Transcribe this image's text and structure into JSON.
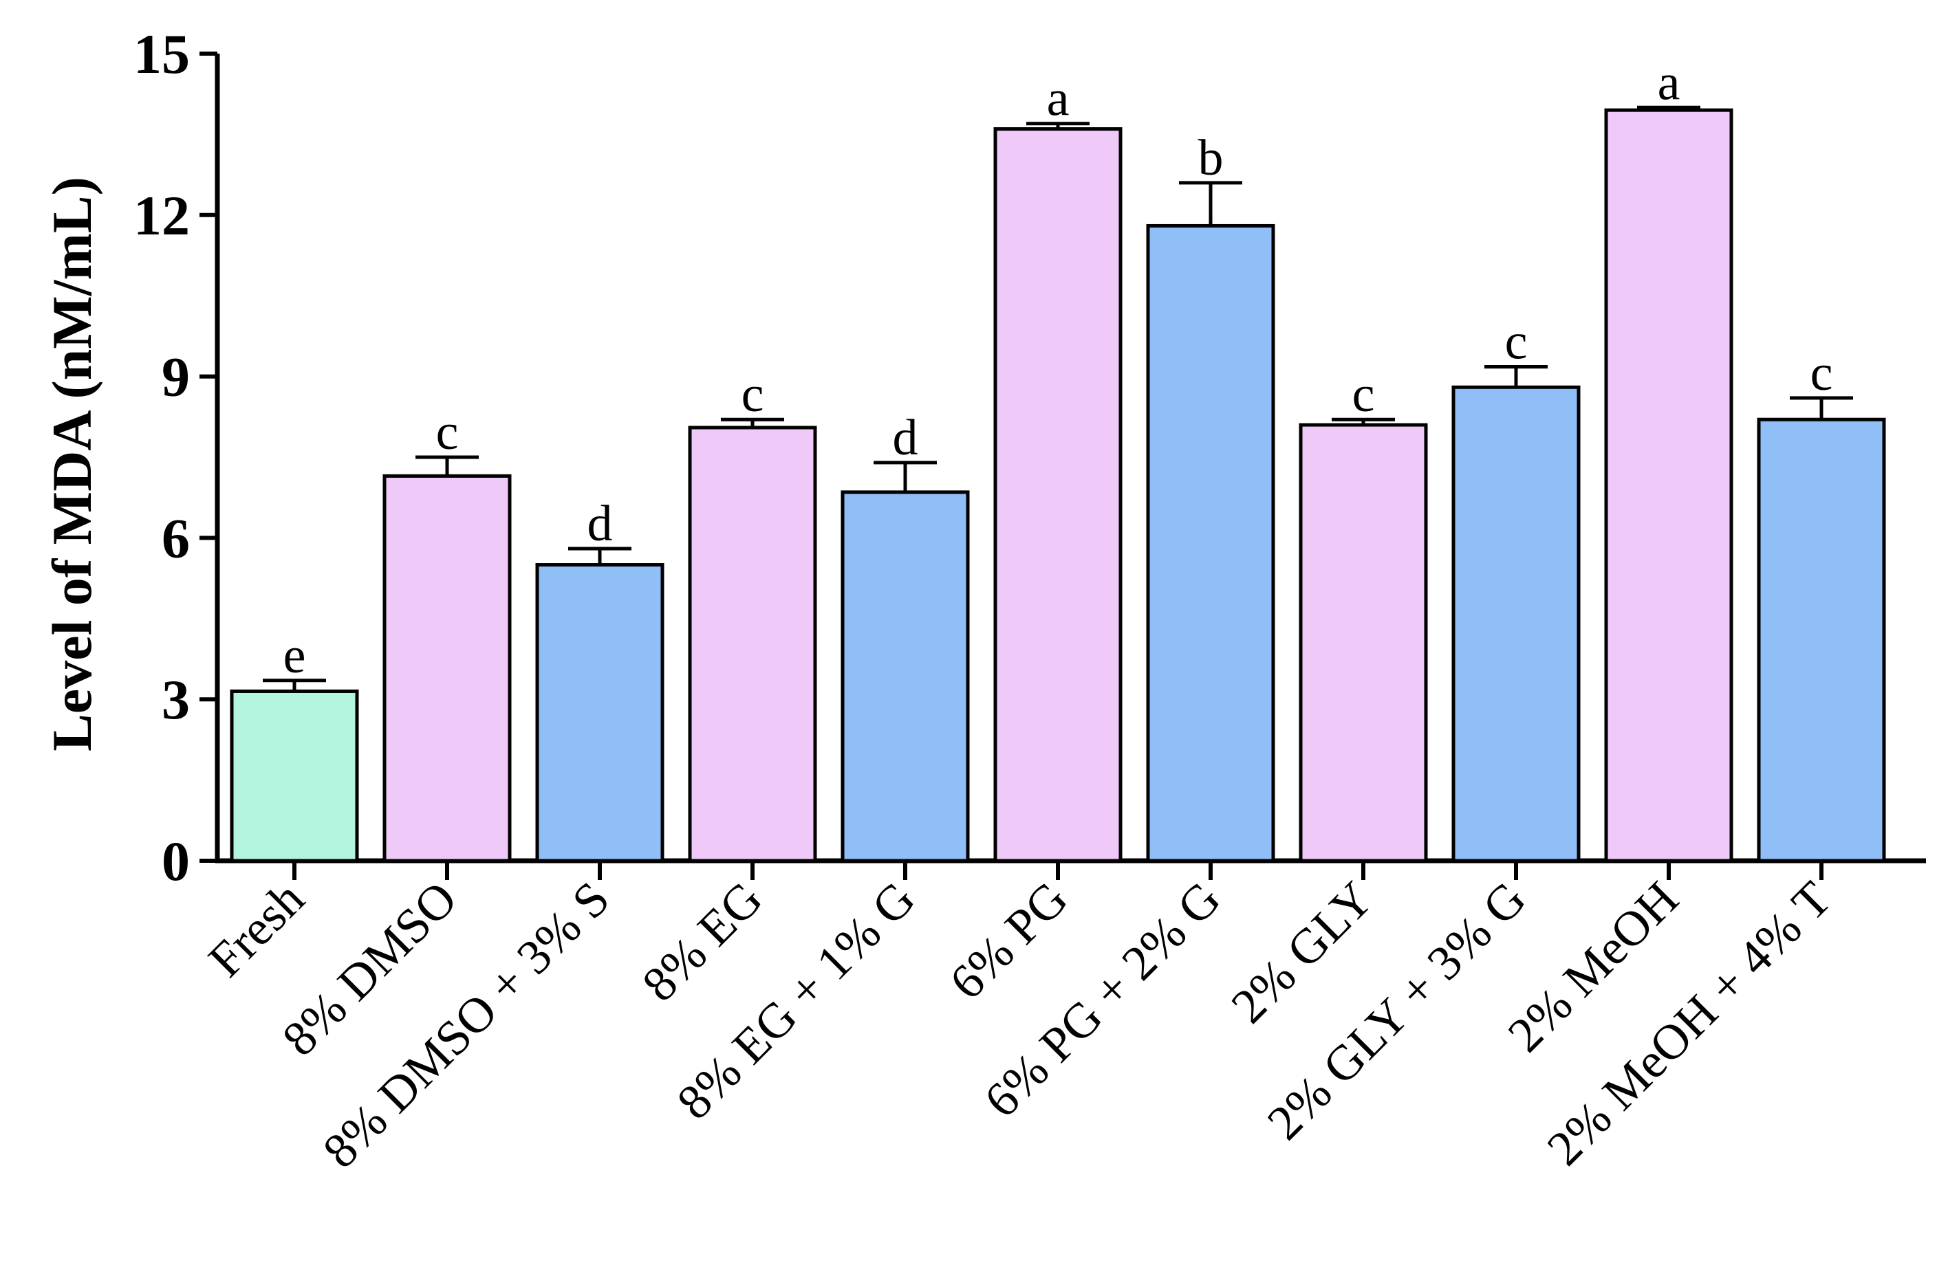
{
  "chart_data": {
    "type": "bar",
    "title": "",
    "xlabel": "",
    "ylabel": "Level of MDA (nM/mL)",
    "ylim": [
      0,
      15
    ],
    "yticks": [
      0,
      3,
      6,
      9,
      12,
      15
    ],
    "grid": false,
    "legend": "none",
    "categories": [
      "Fresh",
      "8% DMSO",
      "8% DMSO + 3% S",
      "8% EG",
      "8% EG + 1% G",
      "6% PG",
      "6% PG + 2% G",
      "2% GLY",
      "2% GLY + 3% G",
      "2% MeOH",
      "2% MeOH + 4% T"
    ],
    "values": [
      3.15,
      7.15,
      5.5,
      8.05,
      6.85,
      13.6,
      11.8,
      8.1,
      8.8,
      13.95,
      8.2
    ],
    "errors": [
      0.2,
      0.35,
      0.3,
      0.15,
      0.55,
      0.1,
      0.8,
      0.1,
      0.38,
      0.05,
      0.4
    ],
    "significance": [
      "e",
      "c",
      "d",
      "c",
      "d",
      "a",
      "b",
      "c",
      "c",
      "a",
      "c"
    ],
    "colors": [
      "#b3f5de",
      "#efc9f7",
      "#90bef7",
      "#efc9f7",
      "#90bef7",
      "#efc9f7",
      "#90bef7",
      "#efc9f7",
      "#90bef7",
      "#efc9f7",
      "#90bef7"
    ]
  }
}
